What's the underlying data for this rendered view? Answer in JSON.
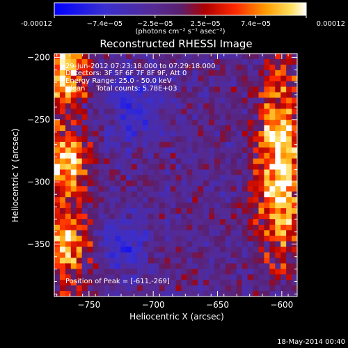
{
  "chart_data": {
    "type": "heatmap",
    "title": "Reconstructed RHESSI Image",
    "xlabel": "Heliocentric X (arcsec)",
    "ylabel": "Heliocentric Y (arcsec)",
    "xlim": [
      -777,
      -588
    ],
    "ylim": [
      -392,
      -197
    ],
    "xticks": [
      -750,
      -700,
      -650,
      -600
    ],
    "yticks": [
      -200,
      -250,
      -300,
      -350
    ],
    "colorbar": {
      "ticks": [
        "-0.00012",
        "−7.4e−05",
        "−2.5e−05",
        "2.5e−05",
        "7.4e−05",
        "0.00012"
      ],
      "unit_label": "(photons cm⁻² s⁻¹ asec⁻²)",
      "range": [
        -0.00012,
        0.00012
      ]
    },
    "annotations": [
      "29-Jun-2012 07:23:18.000 to 07:29:18.000",
      "Detectors: 3F 5F 6F 7F 8F 9F, Att 0",
      "Energy Range: 25.0 - 50.0 keV",
      "Clean     Total counts: 5.78E+03"
    ],
    "peak_label": "Position of Peak = [-611,-269]",
    "peak": [
      -611,
      -269
    ]
  },
  "footer": {
    "timestamp": "18-May-2014 00:40"
  }
}
